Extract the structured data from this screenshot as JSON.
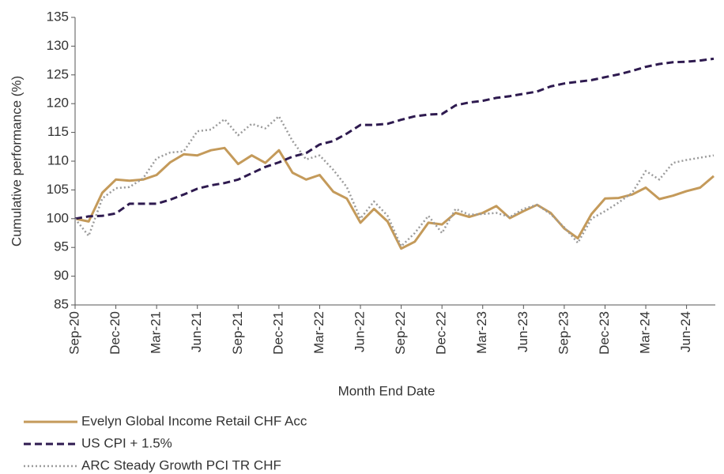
{
  "chart_data": {
    "type": "line",
    "x_label": "Month End Date",
    "y_label": "Cumulative performance (%)",
    "categories": [
      "Sep-20",
      null,
      null,
      "Dec-20",
      null,
      null,
      "Mar-21",
      null,
      null,
      "Jun-21",
      null,
      null,
      "Sep-21",
      null,
      null,
      "Dec-21",
      null,
      null,
      "Mar-22",
      null,
      null,
      "Jun-22",
      null,
      null,
      "Sep-22",
      null,
      null,
      "Dec-22",
      null,
      null,
      "Mar-23",
      null,
      null,
      "Jun-23",
      null,
      null,
      "Sep-23",
      null,
      null,
      "Dec-23",
      null,
      null,
      "Mar-24",
      null,
      null,
      "Jun-24",
      null,
      null
    ],
    "series": [
      {
        "name": "Evelyn Global Income Retail CHF Acc",
        "color": "#c49a5a",
        "line_style": "solid",
        "values": [
          100,
          99.5,
          104.5,
          106.8,
          106.6,
          106.8,
          107.6,
          109.8,
          111.2,
          111,
          111.9,
          112.3,
          109.5,
          111,
          109.7,
          111.9,
          108,
          106.8,
          107.6,
          104.7,
          103.5,
          99.3,
          101.7,
          99.5,
          94.8,
          96,
          99.3,
          99,
          101,
          100.3,
          101,
          102.2,
          100.1,
          101.3,
          102.4,
          101,
          98.3,
          96.6,
          100.8,
          103.5,
          103.6,
          104.2,
          105.4,
          103.4,
          104,
          104.8,
          105.4,
          107.4
        ]
      },
      {
        "name": "US CPI + 1.5%",
        "color": "#2e1a4f",
        "line_style": "dashed",
        "values": [
          100,
          100.4,
          100.5,
          100.9,
          102.6,
          102.6,
          102.6,
          103.3,
          104.2,
          105.2,
          105.8,
          106.2,
          106.8,
          107.9,
          109,
          109.8,
          110.8,
          111.4,
          112.9,
          113.5,
          114.8,
          116.3,
          116.3,
          116.5,
          117.2,
          117.8,
          118.1,
          118.2,
          119.7,
          120.2,
          120.5,
          121,
          121.3,
          121.7,
          122.1,
          123,
          123.5,
          123.8,
          124.1,
          124.6,
          125.1,
          125.7,
          126.4,
          126.9,
          127.2,
          127.3,
          127.5,
          127.8
        ]
      },
      {
        "name": "ARC Steady Growth PCI TR CHF",
        "color": "#9b9b9b",
        "line_style": "dotted",
        "values": [
          100,
          97,
          103.5,
          105.3,
          105.5,
          107,
          110.5,
          111.5,
          111.7,
          115.2,
          115.5,
          117.3,
          114.5,
          116.5,
          115.7,
          117.8,
          113.5,
          110.3,
          111,
          108.5,
          105.5,
          100,
          103,
          100.5,
          95.2,
          97.5,
          100.5,
          97.5,
          101.7,
          100.7,
          100.8,
          101,
          100.3,
          101.7,
          102.4,
          100.8,
          98.5,
          95.8,
          100,
          101.3,
          102.8,
          104.5,
          108.3,
          106.8,
          109.7,
          110.2,
          110.6,
          111
        ]
      }
    ],
    "ylim": [
      85,
      135
    ],
    "yticks": [
      85,
      90,
      95,
      100,
      105,
      110,
      115,
      120,
      125,
      130,
      135
    ],
    "grid": false,
    "legend": "bottom"
  }
}
